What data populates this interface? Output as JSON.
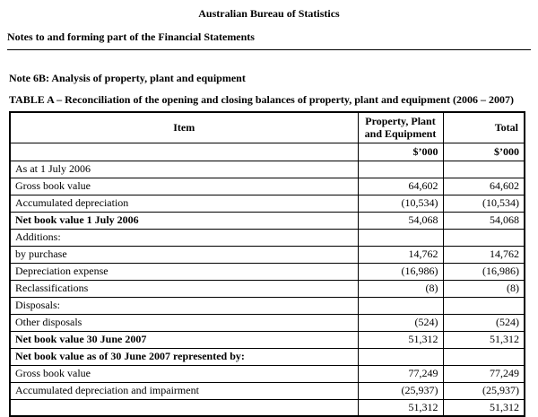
{
  "header": {
    "org_title": "Australian Bureau of Statistics",
    "doc_subtitle": "Notes to and forming part of the Financial Statements"
  },
  "note": {
    "title": "Note 6B:  Analysis of property, plant and equipment",
    "table_caption": "TABLE A – Reconciliation of the opening and closing balances of property, plant and equipment (2006 – 2007)"
  },
  "table": {
    "columns": {
      "item": "Item",
      "ppe": "Property, Plant and Equipment",
      "total": "Total"
    },
    "units": {
      "ppe": "$’000",
      "total": "$’000"
    },
    "rows": [
      {
        "item": "As at 1 July 2006",
        "ppe": "",
        "total": ""
      },
      {
        "item": "Gross book value",
        "ppe": "64,602",
        "total": "64,602"
      },
      {
        "item": "Accumulated depreciation",
        "ppe": "(10,534)",
        "total": "(10,534)"
      },
      {
        "item": "Net book value 1 July 2006",
        "ppe": "54,068",
        "total": "54,068"
      },
      {
        "item": "Additions:",
        "ppe": "",
        "total": ""
      },
      {
        "item": "by purchase",
        "ppe": "14,762",
        "total": "14,762"
      },
      {
        "item": "Depreciation expense",
        "ppe": "(16,986)",
        "total": "(16,986)"
      },
      {
        "item": "Reclassifications",
        "ppe": "(8)",
        "total": "(8)"
      },
      {
        "item": "Disposals:",
        "ppe": "",
        "total": ""
      },
      {
        "item": "Other disposals",
        "ppe": "(524)",
        "total": "(524)"
      },
      {
        "item": "Net book value 30 June 2007",
        "ppe": "51,312",
        "total": "51,312"
      },
      {
        "item": "Net book value as of 30 June 2007 represented by:",
        "ppe": "",
        "total": ""
      },
      {
        "item": "Gross book value",
        "ppe": "77,249",
        "total": "77,249"
      },
      {
        "item": "Accumulated depreciation and impairment",
        "ppe": "(25,937)",
        "total": "(25,937)"
      },
      {
        "item": "",
        "ppe": "51,312",
        "total": "51,312"
      }
    ]
  }
}
